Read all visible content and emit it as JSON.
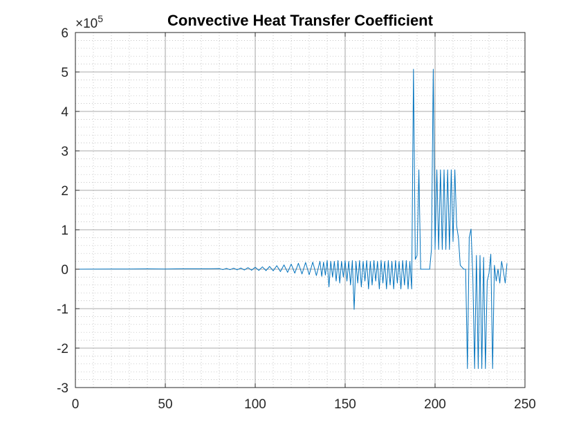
{
  "chart_data": {
    "type": "line",
    "title": "Convective Heat Transfer Coefficient",
    "xlabel": "",
    "ylabel": "",
    "xlim": [
      0,
      250
    ],
    "ylim": [
      -3,
      6
    ],
    "y_exponent_label": "×10^5",
    "y_exponent_base": "×10",
    "y_exponent_power": "5",
    "xticks": [
      0,
      50,
      100,
      150,
      200,
      250
    ],
    "yticks": [
      -3,
      -2,
      -1,
      0,
      1,
      2,
      3,
      4,
      5,
      6
    ],
    "grid": true,
    "minor_grid": true,
    "line_color": "#0072BD",
    "series": [
      {
        "x": [
          0,
          10,
          20,
          30,
          40,
          50,
          60,
          70,
          75,
          80,
          82,
          84,
          86,
          88,
          90,
          92,
          94,
          96,
          98,
          100,
          102,
          104,
          106,
          108,
          110,
          112,
          114,
          116,
          118,
          120,
          122,
          124,
          126,
          128,
          130,
          132,
          134,
          136,
          137,
          138,
          139,
          140,
          141,
          142,
          143,
          144,
          145,
          146,
          147,
          148,
          149,
          150,
          151,
          152,
          153,
          154,
          155,
          156,
          157,
          158,
          159,
          160,
          161,
          162,
          163,
          164,
          165,
          166,
          167,
          168,
          169,
          170,
          171,
          172,
          173,
          174,
          175,
          176,
          177,
          178,
          179,
          180,
          181,
          182,
          183,
          184,
          185,
          186,
          187,
          188,
          189,
          190,
          191,
          192,
          193,
          194,
          195,
          196,
          197,
          198,
          199,
          200,
          201,
          202,
          203,
          204,
          205,
          206,
          207,
          208,
          209,
          210,
          211,
          212,
          213,
          214,
          215,
          216,
          217,
          218,
          219,
          220,
          221,
          222,
          223,
          224,
          225,
          226,
          227,
          228,
          229,
          230,
          231,
          232,
          233,
          234,
          235,
          236,
          237,
          238,
          239,
          240
        ],
        "y": [
          0,
          0.003,
          0.005,
          0.004,
          0.008,
          0.005,
          0.01,
          0.012,
          0.01,
          0.015,
          -0.01,
          0.02,
          -0.012,
          0.025,
          -0.015,
          0.03,
          -0.02,
          0.04,
          -0.025,
          0.05,
          -0.03,
          0.06,
          -0.035,
          0.07,
          -0.04,
          0.09,
          -0.06,
          0.11,
          -0.08,
          0.13,
          -0.1,
          0.15,
          -0.12,
          0.17,
          -0.14,
          0.18,
          -0.16,
          0.2,
          -0.18,
          0.18,
          -0.15,
          0.22,
          -0.45,
          0.2,
          -0.2,
          0.2,
          -0.3,
          0.22,
          -0.35,
          0.2,
          -0.2,
          0.22,
          -0.3,
          0.2,
          -0.4,
          0.22,
          -1.02,
          0.2,
          -0.35,
          0.22,
          -0.45,
          0.2,
          -0.3,
          0.22,
          -0.5,
          0.2,
          -0.4,
          0.22,
          -0.3,
          0.2,
          -0.5,
          0.22,
          -0.35,
          0.2,
          -0.5,
          0.22,
          -0.4,
          0.2,
          -0.5,
          0.22,
          -0.35,
          0.2,
          -0.5,
          0.22,
          -0.4,
          0.22,
          -0.5,
          0.2,
          -0.5,
          5.07,
          0.25,
          0.35,
          2.52,
          0,
          0,
          0,
          0,
          0,
          0,
          0.5,
          5.07,
          0.5,
          2.52,
          0.5,
          2.52,
          0.5,
          2.52,
          0.5,
          2.52,
          0.5,
          2.52,
          0.7,
          2.52,
          1.1,
          0.8,
          0.1,
          0.05,
          0,
          0,
          -2.52,
          0.8,
          1.02,
          -0.2,
          -2.52,
          0.35,
          -2.52,
          0.35,
          -2.52,
          0.3,
          -2.52,
          -0.3,
          -0.1,
          0.38,
          -2.52,
          0.1,
          -0.3,
          0,
          -0.35,
          0.2,
          -0.05,
          -0.35,
          0.15
        ]
      }
    ]
  }
}
